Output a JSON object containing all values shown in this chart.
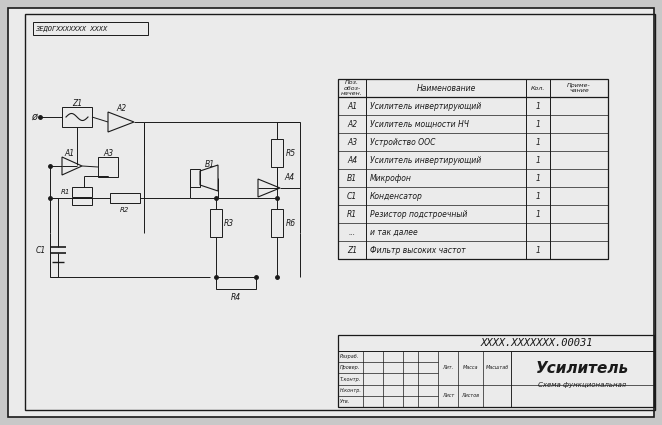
{
  "bg_color": "#c8c8c8",
  "paper_color": "#ebebeb",
  "line_color": "#1a1a1a",
  "title_stamp": "ЗЕДОГXXXXXXX XXXX",
  "table_rows": [
    [
      "A1",
      "Усилитель инвертирующий",
      "1"
    ],
    [
      "A2",
      "Усилитель мощности НЧ",
      "1"
    ],
    [
      "A3",
      "Устройство ООС",
      "1"
    ],
    [
      "A4",
      "Усилитель инвертирующий",
      "1"
    ],
    [
      "B1",
      "Микрофон",
      "1"
    ],
    [
      "C1",
      "Конденсатор",
      "1"
    ],
    [
      "R1",
      "Резистор подстроечный",
      "1"
    ],
    [
      "...",
      "и так далее",
      ""
    ],
    [
      "Z1",
      "Фильтр высоких частот",
      "1"
    ]
  ],
  "stamp_doc_num": "ХXXX.XXXXXXX.00031",
  "stamp_title": "Усилитель",
  "stamp_subtitle": "Схема функциональная",
  "stamp_left_labels": [
    "Разраб.",
    "Провер.",
    "Т.контр.",
    "Н.контр.",
    "Утв."
  ],
  "stamp_right_top": [
    "Лит.",
    "Масса",
    "Масштаб"
  ],
  "stamp_right_bot": [
    "Лист",
    "Листов"
  ]
}
